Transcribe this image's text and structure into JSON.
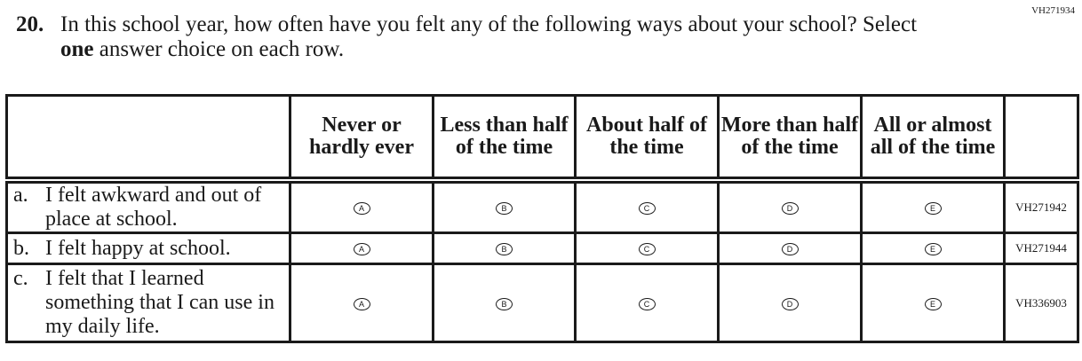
{
  "question": {
    "id": "VH271934",
    "number": "20.",
    "text_before": "In this school year, how often have you felt any of the following ways about your school? Select ",
    "text_bold": "one",
    "text_after": " answer choice on each row."
  },
  "columns": [
    "Never or hardly ever",
    "Less than half of the time",
    "About half of the time",
    "More than half of the time",
    "All or almost all of the time"
  ],
  "bubble_letters": [
    "A",
    "B",
    "C",
    "D",
    "E"
  ],
  "rows": [
    {
      "letter": "a.",
      "text": "I felt awkward and out of place at school.",
      "code": "VH271942"
    },
    {
      "letter": "b.",
      "text": "I felt happy at school.",
      "code": "VH271944"
    },
    {
      "letter": "c.",
      "text": "I felt that I learned something that I can use in my daily life.",
      "code": "VH336903"
    }
  ]
}
